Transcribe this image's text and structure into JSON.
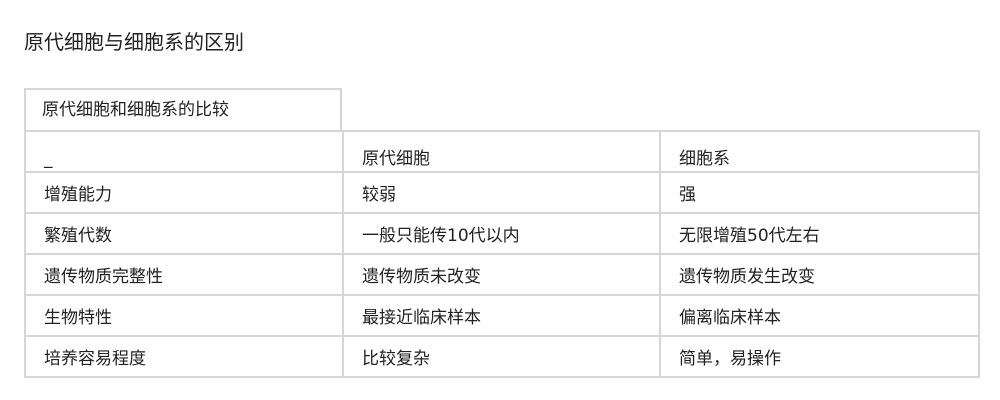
{
  "title": "原代细胞与细胞系的区别",
  "table": {
    "caption": "原代细胞和细胞系的比较",
    "headers": [
      "_",
      "原代细胞",
      "细胞系"
    ],
    "rows": [
      [
        "增殖能力",
        "较弱",
        "强"
      ],
      [
        "繁殖代数",
        "一般只能传10代以内",
        "无限增殖50代左右"
      ],
      [
        "遗传物质完整性",
        "遗传物质未改变",
        "遗传物质发生改变"
      ],
      [
        "生物特性",
        "最接近临床样本",
        "偏离临床样本"
      ],
      [
        "培养容易程度",
        "比较复杂",
        "简单，易操作"
      ]
    ]
  }
}
